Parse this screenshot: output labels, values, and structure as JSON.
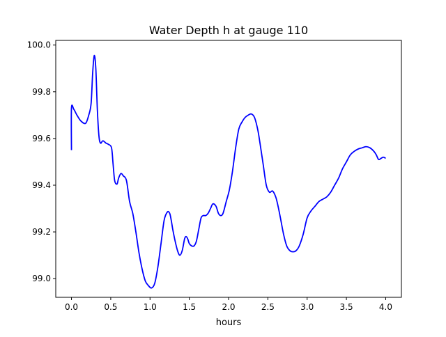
{
  "chart_data": {
    "type": "line",
    "title": "Water Depth h at gauge 110",
    "xlabel": "hours",
    "ylabel": "",
    "xlim": [
      -0.2,
      4.2
    ],
    "ylim": [
      98.92,
      100.02
    ],
    "xticks": [
      0.0,
      0.5,
      1.0,
      1.5,
      2.0,
      2.5,
      3.0,
      3.5,
      4.0
    ],
    "xtick_labels": [
      "0.0",
      "0.5",
      "1.0",
      "1.5",
      "2.0",
      "2.5",
      "3.0",
      "3.5",
      "4.0"
    ],
    "yticks": [
      99.0,
      99.2,
      99.4,
      99.6,
      99.8,
      100.0
    ],
    "ytick_labels": [
      "99.0",
      "99.2",
      "99.4",
      "99.6",
      "99.8",
      "100.0"
    ],
    "grid": false,
    "series": [
      {
        "color": "#0000ff",
        "x": [
          0.0,
          0.0,
          0.03,
          0.07,
          0.12,
          0.18,
          0.22,
          0.25,
          0.27,
          0.29,
          0.31,
          0.33,
          0.35,
          0.37,
          0.4,
          0.44,
          0.47,
          0.51,
          0.53,
          0.55,
          0.58,
          0.6,
          0.63,
          0.66,
          0.7,
          0.74,
          0.78,
          0.82,
          0.86,
          0.9,
          0.94,
          0.98,
          1.02,
          1.06,
          1.1,
          1.14,
          1.18,
          1.22,
          1.25,
          1.27,
          1.29,
          1.32,
          1.35,
          1.38,
          1.41,
          1.44,
          1.46,
          1.48,
          1.5,
          1.53,
          1.56,
          1.59,
          1.62,
          1.65,
          1.68,
          1.71,
          1.74,
          1.77,
          1.8,
          1.84,
          1.87,
          1.9,
          1.93,
          1.97,
          2.01,
          2.05,
          2.09,
          2.13,
          2.17,
          2.21,
          2.25,
          2.29,
          2.33,
          2.37,
          2.4,
          2.44,
          2.48,
          2.52,
          2.56,
          2.6,
          2.63,
          2.66,
          2.7,
          2.74,
          2.78,
          2.82,
          2.86,
          2.9,
          2.95,
          3.0,
          3.05,
          3.1,
          3.15,
          3.2,
          3.25,
          3.3,
          3.35,
          3.4,
          3.45,
          3.5,
          3.55,
          3.6,
          3.65,
          3.7,
          3.75,
          3.8,
          3.85,
          3.88,
          3.91,
          3.94,
          3.97,
          4.0
        ],
        "y": [
          99.55,
          99.73,
          99.725,
          99.7,
          99.675,
          99.665,
          99.7,
          99.75,
          99.88,
          99.955,
          99.9,
          99.72,
          99.61,
          99.58,
          99.59,
          99.58,
          99.575,
          99.56,
          99.49,
          99.42,
          99.405,
          99.43,
          99.45,
          99.44,
          99.42,
          99.33,
          99.28,
          99.2,
          99.11,
          99.04,
          98.99,
          98.97,
          98.96,
          98.98,
          99.05,
          99.15,
          99.25,
          99.285,
          99.28,
          99.25,
          99.21,
          99.16,
          99.12,
          99.1,
          99.12,
          99.17,
          99.18,
          99.17,
          99.15,
          99.14,
          99.14,
          99.16,
          99.21,
          99.26,
          99.27,
          99.27,
          99.28,
          99.3,
          99.32,
          99.31,
          99.28,
          99.27,
          99.28,
          99.33,
          99.38,
          99.46,
          99.56,
          99.64,
          99.67,
          99.69,
          99.7,
          99.705,
          99.69,
          99.64,
          99.58,
          99.49,
          99.4,
          99.37,
          99.375,
          99.35,
          99.31,
          99.26,
          99.19,
          99.14,
          99.12,
          99.115,
          99.12,
          99.14,
          99.19,
          99.26,
          99.29,
          99.31,
          99.33,
          99.34,
          99.35,
          99.37,
          99.4,
          99.43,
          99.47,
          99.5,
          99.53,
          99.545,
          99.555,
          99.56,
          99.565,
          99.56,
          99.545,
          99.53,
          99.51,
          99.515,
          99.52,
          99.515
        ]
      }
    ]
  }
}
